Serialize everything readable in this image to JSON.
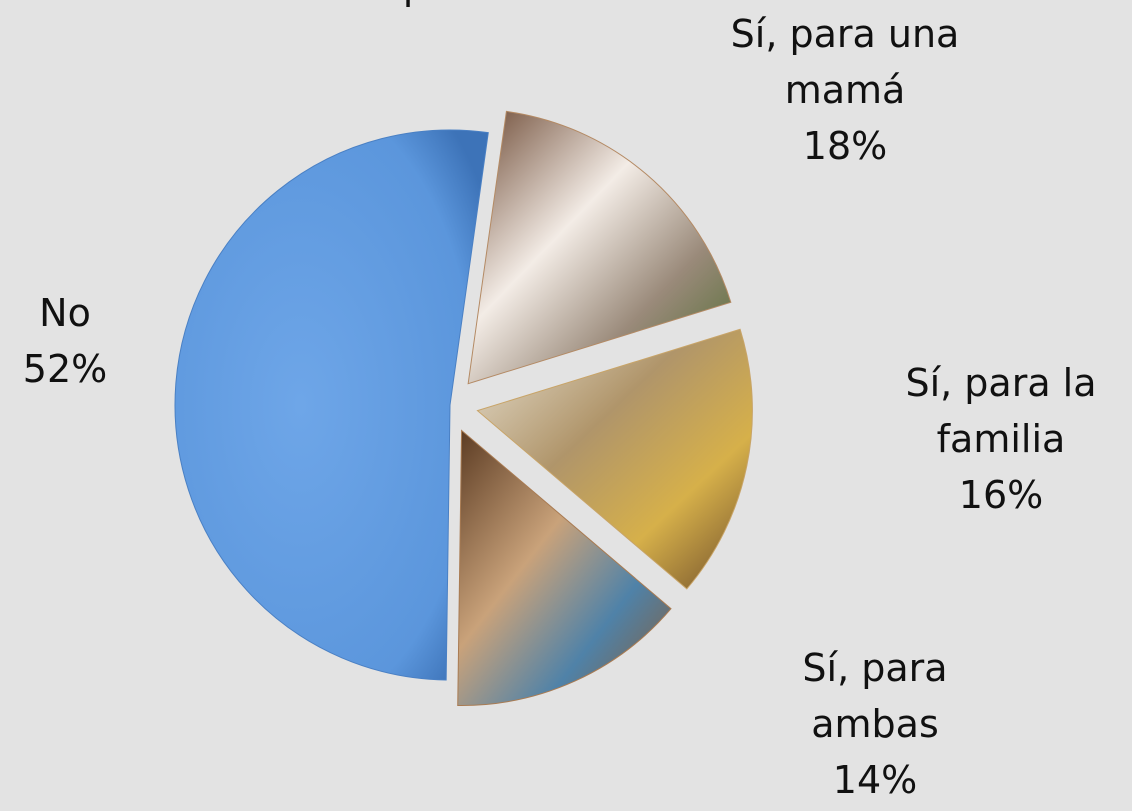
{
  "chart_data": {
    "type": "pie",
    "title": "o producto?",
    "categories": [
      "Sí, para una mamá",
      "Sí, para la familia",
      "Sí, para ambas",
      "No"
    ],
    "values": [
      18,
      16,
      14,
      52
    ],
    "value_labels": [
      "18%",
      "16%",
      "14%",
      "52%"
    ],
    "colors": [
      "#b48a64",
      "#c8a468",
      "#a97b52",
      "#5b96dc"
    ]
  }
}
